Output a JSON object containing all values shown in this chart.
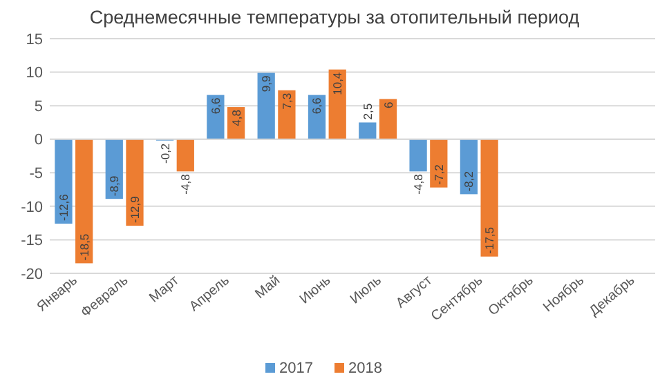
{
  "chart_data": {
    "type": "bar",
    "title": "Среднемесячные температуры за отопительный период",
    "categories": [
      "Январь",
      "Февраль",
      "Март",
      "Апрель",
      "Май",
      "Июнь",
      "Июль",
      "Август",
      "Сентябрь",
      "Октябрь",
      "Ноябрь",
      "Декабрь"
    ],
    "series": [
      {
        "name": "2017",
        "color": "#5b9bd5",
        "values": [
          -12.6,
          -8.9,
          -0.2,
          6.6,
          9.9,
          6.6,
          2.5,
          -4.8,
          -8.2,
          null,
          null,
          null
        ],
        "value_labels": [
          "-12,6",
          "-8,9",
          "-0,2",
          "6,6",
          "9,9",
          "6,6",
          "2,5",
          "-4,8",
          "-8,2",
          null,
          null,
          null
        ]
      },
      {
        "name": "2018",
        "color": "#ed7d31",
        "values": [
          -18.5,
          -12.9,
          -4.8,
          4.8,
          7.3,
          10.4,
          6,
          -7.2,
          -17.5,
          null,
          null,
          null
        ],
        "value_labels": [
          "-18,5",
          "-12,9",
          "-4,8",
          "4,8",
          "7,3",
          "10,4",
          "6",
          "-7,2",
          "-17,5",
          null,
          null,
          null
        ]
      }
    ],
    "ylim": [
      -20,
      15
    ],
    "yticks": [
      -20,
      -15,
      -10,
      -5,
      0,
      5,
      10,
      15
    ],
    "grid": "y",
    "legend": "bottom"
  }
}
